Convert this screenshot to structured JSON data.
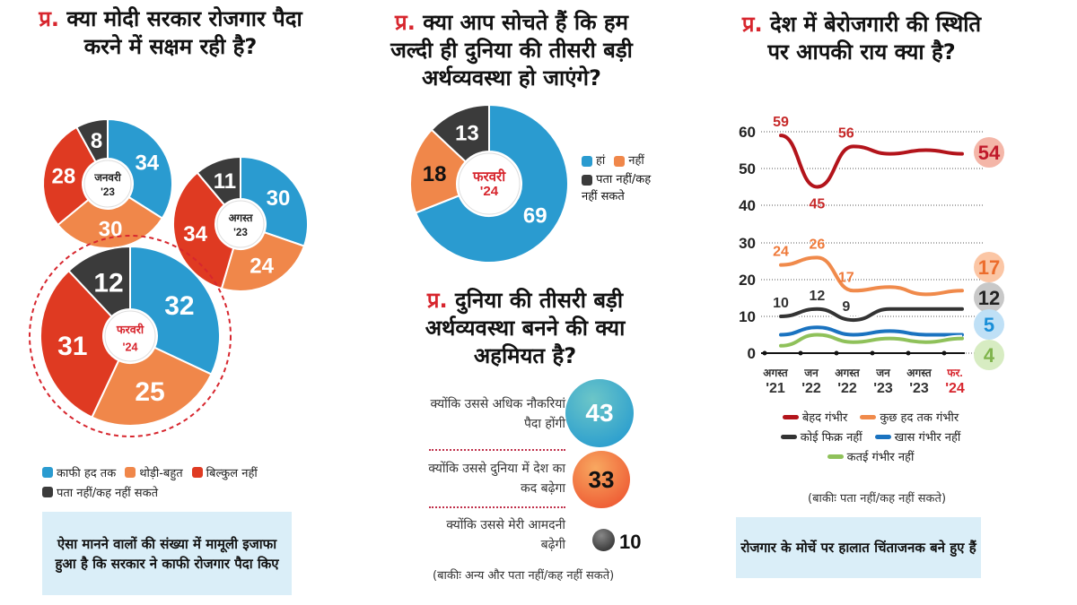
{
  "colors": {
    "blue": "#2a9bd0",
    "orange": "#f0874a",
    "red": "#df3a22",
    "dark": "#3b3b3b",
    "question_marker": "#d7262e"
  },
  "left": {
    "q_marker": "प्र.",
    "title": "क्या मोदी सरकार रोजगार पैदा करने में सक्षम रही है?",
    "legend": [
      "काफी हद तक",
      "थोड़ी-बहुत",
      "बिल्कुल नहीं",
      "पता नहीं/कह नहीं सकते"
    ],
    "summary": "ऐसा मानने वालों की संख्या में मामूली इजाफा हुआ है कि सरकार ने काफी रोजगार पैदा किए"
  },
  "middle": {
    "q_marker": "प्र.",
    "title": "क्या आप सोचते हैं कि हम जल्दी ही दुनिया की तीसरी बड़ी अर्थव्यवस्था हो जाएंगे?",
    "legend": [
      "हां",
      "नहीं",
      "पता नहीं/कह नहीं सकते"
    ],
    "q2_marker": "प्र.",
    "title2": "दुनिया की तीसरी बड़ी अर्थव्यवस्था बनने की क्या अहमियत है?",
    "footnote": "(बाकीः अन्य और पता नहीं/कह नहीं सकते)"
  },
  "right": {
    "q_marker": "प्र.",
    "title": "देश में बेरोजगारी की स्थिति पर आपकी राय क्या है?",
    "footnote": "(बाकीः पता नहीं/कह नहीं सकते)",
    "summary": "रोजगार के मोर्चे पर हालात चिंताजनक बने हुए हैं"
  },
  "chart_data": [
    {
      "type": "pie",
      "donut": true,
      "center_label": "जनवरी '23",
      "categories": [
        "काफी हद तक",
        "थोड़ी-बहुत",
        "बिल्कुल नहीं",
        "पता नहीं/कह नहीं सकते"
      ],
      "values": [
        34,
        30,
        28,
        8
      ],
      "colors": [
        "#2a9bd0",
        "#f0874a",
        "#df3a22",
        "#3b3b3b"
      ]
    },
    {
      "type": "pie",
      "donut": true,
      "center_label": "अगस्त '23",
      "categories": [
        "काफी हद तक",
        "थोड़ी-बहुत",
        "बिल्कुल नहीं",
        "पता नहीं/कह नहीं सकते"
      ],
      "values": [
        30,
        24,
        34,
        11
      ],
      "colors": [
        "#2a9bd0",
        "#f0874a",
        "#df3a22",
        "#3b3b3b"
      ]
    },
    {
      "type": "pie",
      "donut": true,
      "center_label": "फरवरी '24",
      "categories": [
        "काफी हद तक",
        "थोड़ी-बहुत",
        "बिल्कुल नहीं",
        "पता नहीं/कह नहीं सकते"
      ],
      "values": [
        32,
        25,
        31,
        12
      ],
      "colors": [
        "#2a9bd0",
        "#f0874a",
        "#df3a22",
        "#3b3b3b"
      ]
    },
    {
      "type": "pie",
      "donut": true,
      "center_label": "फरवरी '24",
      "categories": [
        "हां",
        "नहीं",
        "पता नहीं/कह नहीं सकते"
      ],
      "values": [
        69,
        18,
        13
      ],
      "colors": [
        "#2a9bd0",
        "#f0874a",
        "#3b3b3b"
      ]
    },
    {
      "type": "bubble",
      "categories": [
        "क्योंकि उससे अधिक नौकरियां पैदा होंगी",
        "क्योंकि उससे दुनिया में देश का कद बढ़ेगा",
        "क्योंकि उससे मेरी आमदनी बढ़ेगी"
      ],
      "values": [
        43,
        33,
        10
      ],
      "colors": [
        "#2a9bd0",
        "#f0874a",
        "#3b3b3b"
      ]
    },
    {
      "type": "line",
      "x": [
        "अगस्त '21",
        "जन '22",
        "अगस्त '22",
        "जन '23",
        "अगस्त '23",
        "फर. '24"
      ],
      "yticks": [
        0,
        10,
        20,
        30,
        40,
        50,
        60
      ],
      "ylim": [
        0,
        60
      ],
      "axis_break": [
        30,
        40
      ],
      "grid": true,
      "legend_placement": "bottom",
      "series": [
        {
          "name": "बेहद गंभीर",
          "color": "#b3141b",
          "values": [
            59,
            45,
            56,
            54,
            55,
            54
          ],
          "labels": [
            59,
            45,
            56,
            null,
            null,
            54
          ]
        },
        {
          "name": "कुछ हद तक गंभीर",
          "color": "#f08a4b",
          "values": [
            24,
            26,
            17,
            18,
            16,
            17
          ],
          "labels": [
            24,
            26,
            17,
            null,
            null,
            17
          ]
        },
        {
          "name": "कोई फिक्र नहीं",
          "color": "#333333",
          "values": [
            10,
            12,
            9,
            12,
            12,
            12
          ],
          "labels": [
            10,
            12,
            9,
            null,
            null,
            12
          ]
        },
        {
          "name": "खास गंभीर नहीं",
          "color": "#1a73c0",
          "values": [
            5,
            7,
            5,
            6,
            5,
            5
          ],
          "labels": [
            null,
            null,
            null,
            null,
            null,
            5
          ]
        },
        {
          "name": "कतई गंभीर नहीं",
          "color": "#8fc15a",
          "values": [
            2,
            5,
            3,
            4,
            3,
            4
          ],
          "labels": [
            null,
            null,
            null,
            null,
            null,
            4
          ]
        }
      ]
    }
  ]
}
